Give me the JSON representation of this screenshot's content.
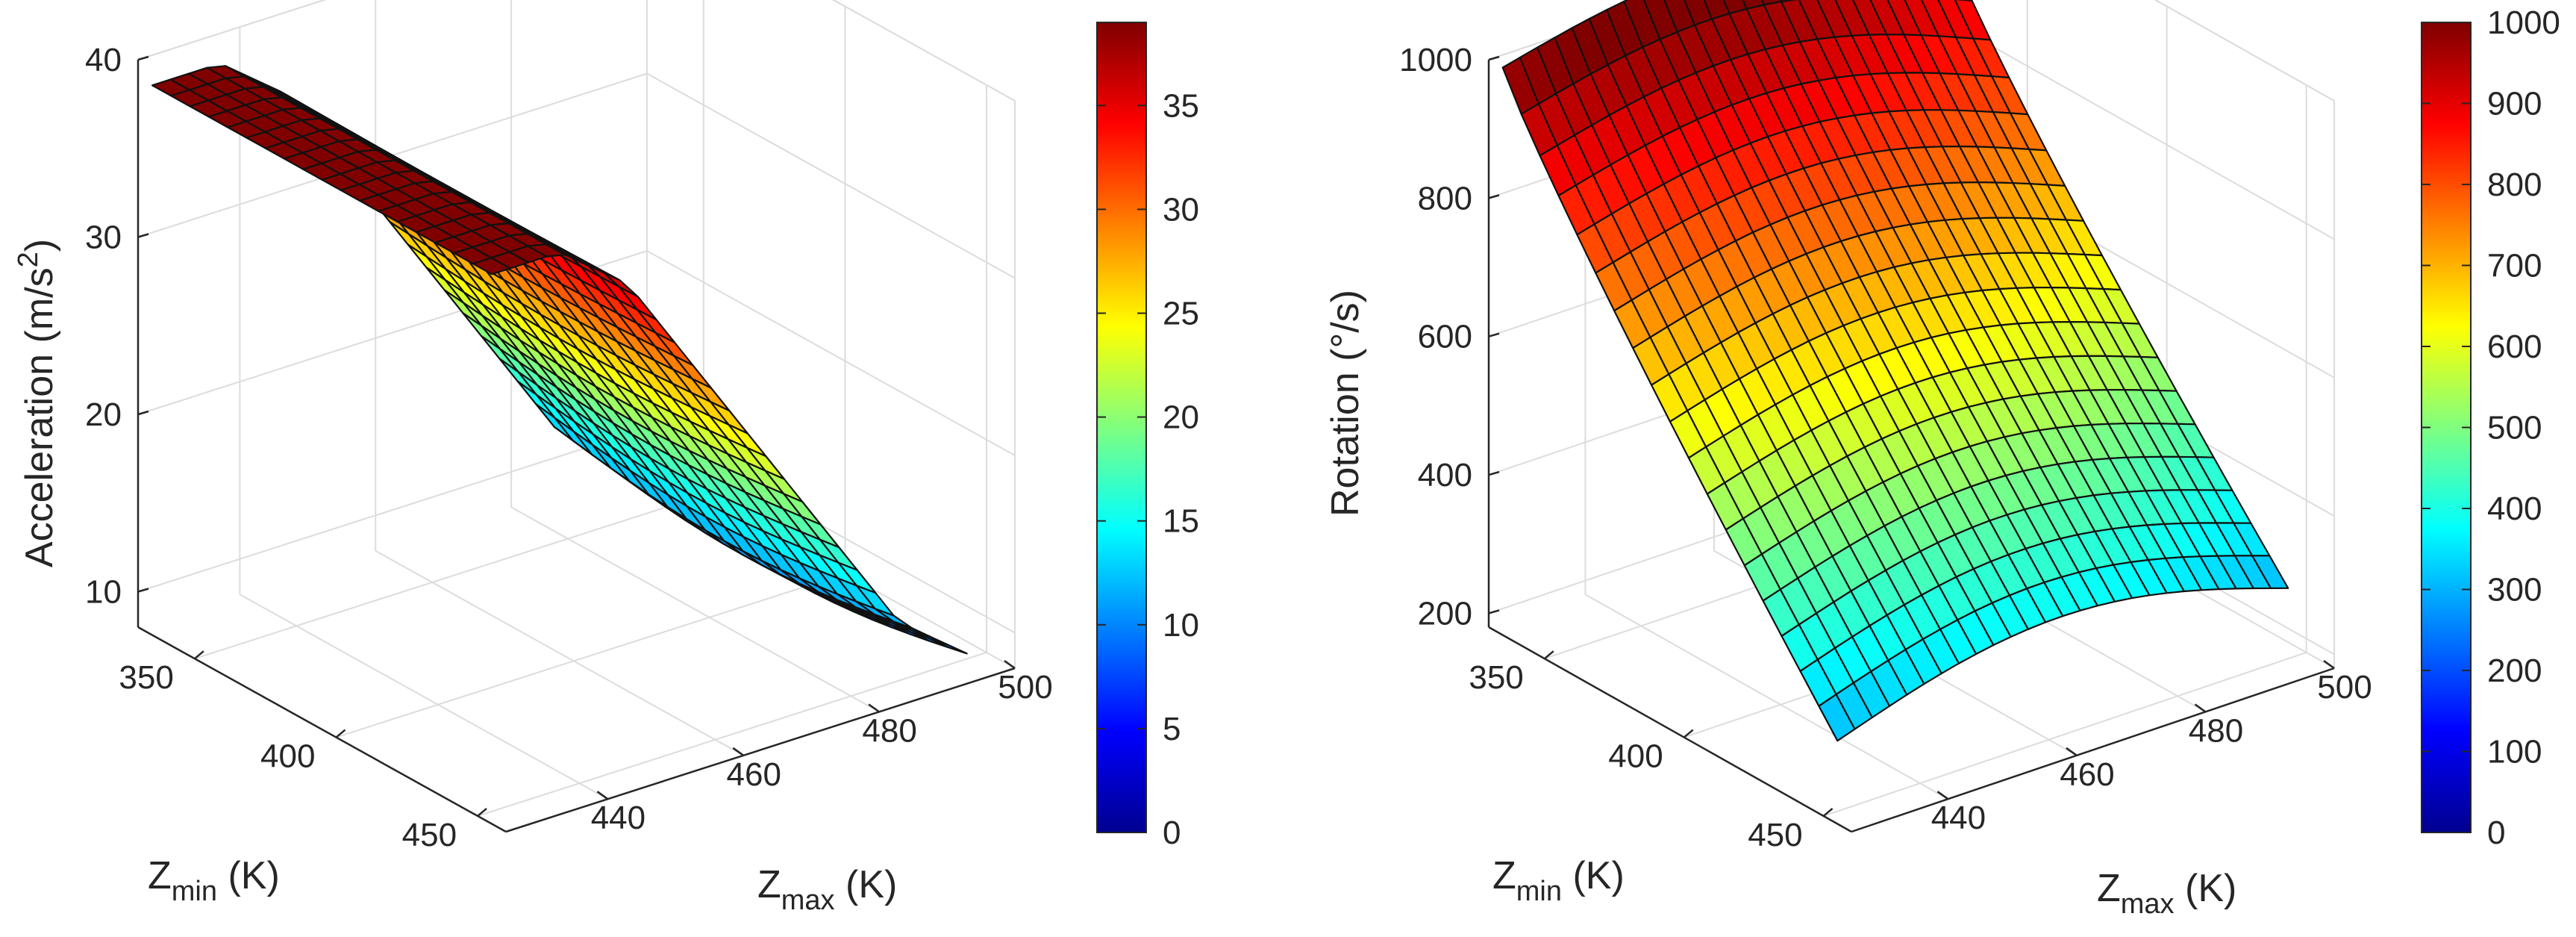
{
  "chart_data": [
    {
      "type": "surface",
      "title": "",
      "xlabel": {
        "main": "Z",
        "sub": "min",
        "unit": " (K)"
      },
      "ylabel": {
        "main": "Z",
        "sub": "max",
        "unit": " (K)"
      },
      "zlabel": {
        "main": "Acceleration (m/s",
        "sup": "2",
        "end": ")"
      },
      "xlim": [
        330,
        460
      ],
      "ylim": [
        425,
        500
      ],
      "zlim": [
        8,
        40
      ],
      "x_ticks": [
        350,
        400,
        450
      ],
      "y_ticks": [
        440,
        460,
        480,
        500
      ],
      "z_ticks": [
        10,
        20,
        30,
        40
      ],
      "x_range_data": [
        335,
        455
      ],
      "y_range_data": [
        425,
        495
      ],
      "colorbar": {
        "range": [
          0,
          39
        ],
        "ticks": [
          0,
          5,
          10,
          15,
          20,
          25,
          30,
          35
        ]
      },
      "surface_description": "plateau ~39 at low Zmax, falling to ~9 at high Zmax",
      "z_at_y": [
        [
          425,
          39
        ],
        [
          435,
          39
        ],
        [
          445,
          36
        ],
        [
          455,
          30
        ],
        [
          465,
          24
        ],
        [
          475,
          18
        ],
        [
          485,
          12
        ],
        [
          495,
          9
        ]
      ]
    },
    {
      "type": "surface",
      "title": "",
      "xlabel": {
        "main": "Z",
        "sub": "min",
        "unit": " (K)"
      },
      "ylabel": {
        "main": "Z",
        "sub": "max",
        "unit": " (K)"
      },
      "zlabel": {
        "main": "Rotation (°/s)",
        "sup": "",
        "end": ""
      },
      "xlim": [
        330,
        460
      ],
      "ylim": [
        425,
        500
      ],
      "zlim": [
        180,
        1000
      ],
      "x_ticks": [
        350,
        400,
        450
      ],
      "y_ticks": [
        440,
        460,
        480,
        500
      ],
      "z_ticks": [
        200,
        400,
        600,
        800,
        1000
      ],
      "x_range_data": [
        335,
        455
      ],
      "y_range_data": [
        425,
        495
      ],
      "colorbar": {
        "range": [
          0,
          1000
        ],
        "ticks": [
          0,
          100,
          200,
          300,
          400,
          500,
          600,
          700,
          800,
          900,
          1000
        ]
      },
      "surface_description": "low Zmin rows ~1000, high Zmin rows ~300, saddle near mid",
      "z_at_x_min": 1000,
      "z_at_x_max": 300
    }
  ]
}
